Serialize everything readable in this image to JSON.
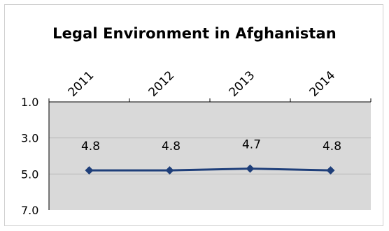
{
  "chart_data": {
    "type": "line",
    "title": "Legal Environment in Afghanistan",
    "categories": [
      "2011",
      "2012",
      "2013",
      "2014"
    ],
    "series": [
      {
        "values": [
          4.8,
          4.8,
          4.7,
          4.8
        ]
      }
    ],
    "data_labels": [
      "4.8",
      "4.8",
      "4.7",
      "4.8"
    ],
    "y_ticks": [
      "1.0",
      "3.0",
      "5.0",
      "7.0"
    ],
    "ylim": [
      1.0,
      7.0
    ],
    "y_inverted": true,
    "x_axis_position": "top",
    "grid": true,
    "colors": {
      "line": "#1f3f7a",
      "marker": "#1f3f7a",
      "plot_bg": "#d9d9d9",
      "grid": "#b7b7b7"
    }
  }
}
